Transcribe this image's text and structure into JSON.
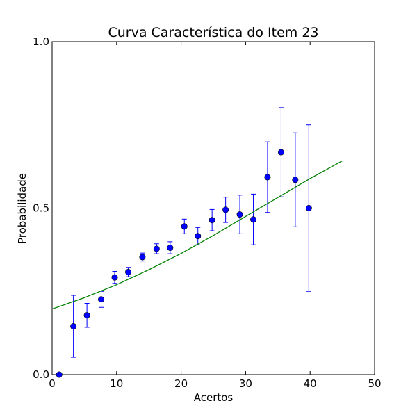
{
  "chart_data": {
    "type": "scatter",
    "title": "Curva Característica do Item 23",
    "xlabel": "Acertos",
    "ylabel": "Probabilidade",
    "xlim": [
      0,
      50
    ],
    "ylim": [
      0.0,
      1.0
    ],
    "xticks": [
      0,
      10,
      20,
      30,
      40,
      50
    ],
    "xtick_labels": [
      "0",
      "10",
      "20",
      "30",
      "40",
      "50"
    ],
    "yticks": [
      0.0,
      0.5,
      1.0
    ],
    "ytick_labels": [
      "0.0",
      "0.5",
      "1.0"
    ],
    "grid": false,
    "legend": "none",
    "series": [
      {
        "kind": "errorbar",
        "color": "#0000ff",
        "points": [
          {
            "x": 1.1,
            "y": 0.0,
            "err": 0.0
          },
          {
            "x": 3.3,
            "y": 0.145,
            "err": 0.093
          },
          {
            "x": 5.4,
            "y": 0.178,
            "err": 0.036
          },
          {
            "x": 7.6,
            "y": 0.226,
            "err": 0.024
          },
          {
            "x": 9.7,
            "y": 0.292,
            "err": 0.018
          },
          {
            "x": 11.8,
            "y": 0.308,
            "err": 0.014
          },
          {
            "x": 14.0,
            "y": 0.353,
            "err": 0.012
          },
          {
            "x": 16.2,
            "y": 0.378,
            "err": 0.015
          },
          {
            "x": 18.3,
            "y": 0.381,
            "err": 0.018
          },
          {
            "x": 20.5,
            "y": 0.445,
            "err": 0.022
          },
          {
            "x": 22.6,
            "y": 0.416,
            "err": 0.026
          },
          {
            "x": 24.8,
            "y": 0.464,
            "err": 0.032
          },
          {
            "x": 26.9,
            "y": 0.495,
            "err": 0.038
          },
          {
            "x": 29.1,
            "y": 0.481,
            "err": 0.058
          },
          {
            "x": 31.2,
            "y": 0.466,
            "err": 0.076
          },
          {
            "x": 33.4,
            "y": 0.593,
            "err": 0.106
          },
          {
            "x": 35.5,
            "y": 0.668,
            "err": 0.134
          },
          {
            "x": 37.7,
            "y": 0.585,
            "err": 0.141
          },
          {
            "x": 39.8,
            "y": 0.5,
            "err": 0.25
          }
        ]
      },
      {
        "kind": "line",
        "color": "#008000",
        "x": [
          0,
          5,
          10,
          15,
          20,
          25,
          30,
          35,
          40,
          45
        ],
        "y": [
          0.197,
          0.231,
          0.27,
          0.315,
          0.364,
          0.418,
          0.475,
          0.532,
          0.589,
          0.642
        ]
      }
    ]
  }
}
